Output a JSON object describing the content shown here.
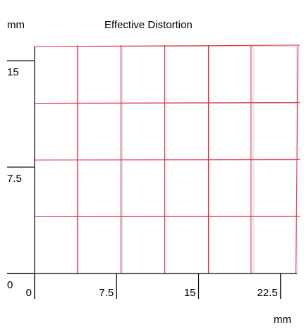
{
  "chart_data": {
    "type": "grid-distortion",
    "title": "Effective Distortion",
    "y_unit": "mm",
    "x_unit": "mm",
    "xlim": [
      0,
      24
    ],
    "ylim": [
      0,
      16
    ],
    "x_ticks": [
      0,
      7.5,
      15,
      22.5
    ],
    "x_tick_labels": [
      "0",
      "7.5",
      "15",
      "22.5"
    ],
    "y_ticks": [
      0,
      7.5,
      15
    ],
    "y_tick_labels": [
      "0",
      "7.5",
      "15"
    ],
    "reference_grid_x": [
      0,
      4,
      8,
      12,
      16,
      20,
      24
    ],
    "reference_grid_y": [
      0,
      4,
      8,
      12,
      16
    ],
    "distorted_horizontal_lines": [
      {
        "y_left": 16,
        "y_right": 16.1
      },
      {
        "y_left": 12,
        "y_right": 12.05
      },
      {
        "y_left": 8,
        "y_right": 8.03
      },
      {
        "y_left": 4,
        "y_right": 4.02
      }
    ],
    "distorted_vertical_lines": [
      {
        "x_bottom": 3.9,
        "x_top": 3.9
      },
      {
        "x_bottom": 7.9,
        "x_top": 7.9
      },
      {
        "x_bottom": 11.9,
        "x_top": 11.9
      },
      {
        "x_bottom": 15.9,
        "x_top": 15.9
      },
      {
        "x_bottom": 19.8,
        "x_top": 19.8
      },
      {
        "x_bottom": 23.9,
        "x_top": 24.1
      }
    ],
    "colors": {
      "reference_grid": "#c8c8c8",
      "distorted_grid": "#e8334a",
      "axis": "#000000"
    }
  }
}
